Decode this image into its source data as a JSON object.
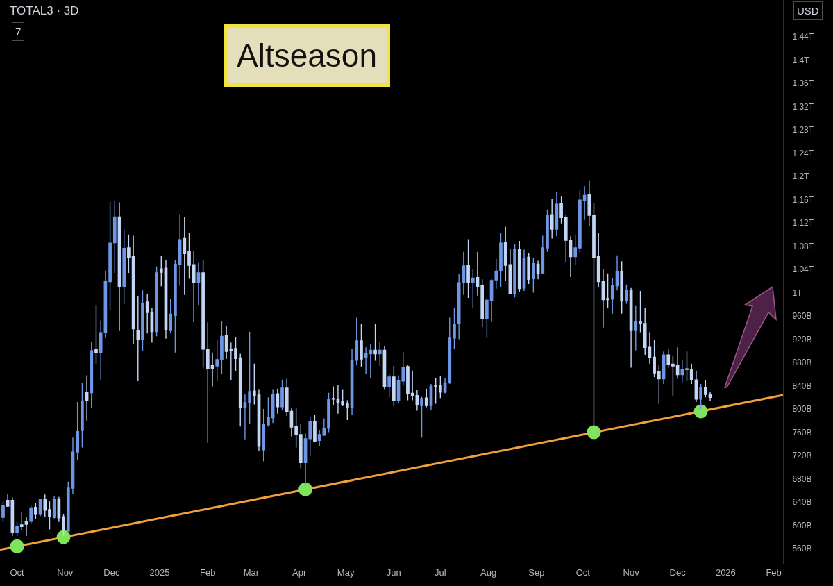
{
  "chart_data": {
    "type": "candlestick",
    "title": "Altseason",
    "subtitle": "TOTAL3 · 3D",
    "annotations": [
      "USD",
      "7"
    ],
    "xlim": [
      "2024-09-20",
      "2026-02-07"
    ],
    "xticks": [
      {
        "value": "2024-10-01",
        "label": "Oct"
      },
      {
        "value": "2024-11-01",
        "label": "Nov"
      },
      {
        "value": "2024-12-01",
        "label": "Dec"
      },
      {
        "value": "2025-01-01",
        "label": "2025"
      },
      {
        "value": "2025-02-01",
        "label": "Feb"
      },
      {
        "value": "2025-03-01",
        "label": "Mar"
      },
      {
        "value": "2025-04-01",
        "label": "Apr"
      },
      {
        "value": "2025-05-01",
        "label": "May"
      },
      {
        "value": "2025-06-01",
        "label": "Jun"
      },
      {
        "value": "2025-07-01",
        "label": "Jul"
      },
      {
        "value": "2025-08-01",
        "label": "Aug"
      },
      {
        "value": "2025-09-01",
        "label": "Sep"
      },
      {
        "value": "2025-10-01",
        "label": "Oct"
      },
      {
        "value": "2025-11-01",
        "label": "Nov"
      },
      {
        "value": "2025-12-01",
        "label": "Dec"
      },
      {
        "value": "2026-01-01",
        "label": "2026"
      },
      {
        "value": "2026-02-01",
        "label": "Feb"
      }
    ],
    "ylim": [
      534000000000.0,
      1503000000000.0
    ],
    "yticks": [
      {
        "value": 560000000000.0,
        "label": "560B"
      },
      {
        "value": 600000000000.0,
        "label": "600B"
      },
      {
        "value": 640000000000.0,
        "label": "640B"
      },
      {
        "value": 680000000000.0,
        "label": "680B"
      },
      {
        "value": 720000000000.0,
        "label": "720B"
      },
      {
        "value": 760000000000.0,
        "label": "760B"
      },
      {
        "value": 800000000000.0,
        "label": "800B"
      },
      {
        "value": 840000000000.0,
        "label": "840B"
      },
      {
        "value": 880000000000.0,
        "label": "880B"
      },
      {
        "value": 920000000000.0,
        "label": "920B"
      },
      {
        "value": 960000000000.0,
        "label": "960B"
      },
      {
        "value": 1000000000000.0,
        "label": "1T"
      },
      {
        "value": 1040000000000.0,
        "label": "1.04T"
      },
      {
        "value": 1080000000000.0,
        "label": "1.08T"
      },
      {
        "value": 1120000000000.0,
        "label": "1.12T"
      },
      {
        "value": 1160000000000.0,
        "label": "1.16T"
      },
      {
        "value": 1200000000000.0,
        "label": "1.2T"
      },
      {
        "value": 1240000000000.0,
        "label": "1.24T"
      },
      {
        "value": 1280000000000.0,
        "label": "1.28T"
      },
      {
        "value": 1320000000000.0,
        "label": "1.32T"
      },
      {
        "value": 1360000000000.0,
        "label": "1.36T"
      },
      {
        "value": 1400000000000.0,
        "label": "1.4T"
      },
      {
        "value": 1440000000000.0,
        "label": "1.44T"
      }
    ],
    "series": [
      {
        "type": "candlestick",
        "x": [
          "2024-09-22",
          "2024-09-25",
          "2024-09-28",
          "2024-10-01",
          "2024-10-04",
          "2024-10-07",
          "2024-10-10",
          "2024-10-13",
          "2024-10-16",
          "2024-10-19",
          "2024-10-22",
          "2024-10-25",
          "2024-10-28",
          "2024-10-31",
          "2024-11-03",
          "2024-11-06",
          "2024-11-09",
          "2024-11-12",
          "2024-11-15",
          "2024-11-18",
          "2024-11-21",
          "2024-11-24",
          "2024-11-27",
          "2024-11-30",
          "2024-12-03",
          "2024-12-06",
          "2024-12-09",
          "2024-12-12",
          "2024-12-15",
          "2024-12-18",
          "2024-12-21",
          "2024-12-24",
          "2024-12-27",
          "2024-12-30",
          "2025-01-02",
          "2025-01-05",
          "2025-01-08",
          "2025-01-11",
          "2025-01-14",
          "2025-01-17",
          "2025-01-20",
          "2025-01-23",
          "2025-01-26",
          "2025-01-29",
          "2025-02-01",
          "2025-02-04",
          "2025-02-07",
          "2025-02-10",
          "2025-02-13",
          "2025-02-16",
          "2025-02-19",
          "2025-02-22",
          "2025-02-25",
          "2025-02-28",
          "2025-03-03",
          "2025-03-06",
          "2025-03-09",
          "2025-03-12",
          "2025-03-15",
          "2025-03-18",
          "2025-03-21",
          "2025-03-24",
          "2025-03-27",
          "2025-03-30",
          "2025-04-02",
          "2025-04-05",
          "2025-04-08",
          "2025-04-11",
          "2025-04-14",
          "2025-04-17",
          "2025-04-20",
          "2025-04-23",
          "2025-04-26",
          "2025-04-29",
          "2025-05-02",
          "2025-05-05",
          "2025-05-08",
          "2025-05-11",
          "2025-05-14",
          "2025-05-17",
          "2025-05-20",
          "2025-05-23",
          "2025-05-26",
          "2025-05-29",
          "2025-06-01",
          "2025-06-04",
          "2025-06-07",
          "2025-06-10",
          "2025-06-13",
          "2025-06-16",
          "2025-06-19",
          "2025-06-22",
          "2025-06-25",
          "2025-06-28",
          "2025-07-01",
          "2025-07-04",
          "2025-07-07",
          "2025-07-10",
          "2025-07-13",
          "2025-07-16",
          "2025-07-19",
          "2025-07-22",
          "2025-07-25",
          "2025-07-28",
          "2025-07-31",
          "2025-08-03",
          "2025-08-06",
          "2025-08-09",
          "2025-08-12",
          "2025-08-15",
          "2025-08-18",
          "2025-08-21",
          "2025-08-24",
          "2025-08-27",
          "2025-08-30",
          "2025-09-02",
          "2025-09-05",
          "2025-09-08",
          "2025-09-11",
          "2025-09-14",
          "2025-09-17",
          "2025-09-20",
          "2025-09-23",
          "2025-09-26",
          "2025-09-29",
          "2025-10-02",
          "2025-10-05",
          "2025-10-08",
          "2025-10-11",
          "2025-10-14",
          "2025-10-17",
          "2025-10-20",
          "2025-10-23",
          "2025-10-26",
          "2025-10-29",
          "2025-11-01",
          "2025-11-04",
          "2025-11-07",
          "2025-11-10",
          "2025-11-13",
          "2025-11-16",
          "2025-11-19",
          "2025-11-22",
          "2025-11-25",
          "2025-11-28",
          "2025-12-01",
          "2025-12-04",
          "2025-12-07",
          "2025-12-10",
          "2025-12-13",
          "2025-12-16",
          "2025-12-19",
          "2025-12-22"
        ],
        "ohlc": [
          [
            614000000000.0,
            642000000000.0,
            606000000000.0,
            634000000000.0
          ],
          [
            643000000000.0,
            654000000000.0,
            632000000000.0,
            633000000000.0
          ],
          [
            643000000000.0,
            648000000000.0,
            582000000000.0,
            588000000000.0
          ],
          [
            588000000000.0,
            606000000000.0,
            582000000000.0,
            598000000000.0
          ],
          [
            601000000000.0,
            622000000000.0,
            592000000000.0,
            598000000000.0
          ],
          [
            607000000000.0,
            614000000000.0,
            582000000000.0,
            602000000000.0
          ],
          [
            607000000000.0,
            634000000000.0,
            602000000000.0,
            630000000000.0
          ],
          [
            631000000000.0,
            639000000000.0,
            611000000000.0,
            619000000000.0
          ],
          [
            619000000000.0,
            646000000000.0,
            616000000000.0,
            644000000000.0
          ],
          [
            644000000000.0,
            653000000000.0,
            614000000000.0,
            626000000000.0
          ],
          [
            627000000000.0,
            641000000000.0,
            593000000000.0,
            615000000000.0
          ],
          [
            614000000000.0,
            651000000000.0,
            612000000000.0,
            644000000000.0
          ],
          [
            644000000000.0,
            649000000000.0,
            606000000000.0,
            613000000000.0
          ],
          [
            615000000000.0,
            620000000000.0,
            582000000000.0,
            592000000000.0
          ],
          [
            590000000000.0,
            675000000000.0,
            590000000000.0,
            664000000000.0
          ],
          [
            664000000000.0,
            751000000000.0,
            654000000000.0,
            726000000000.0
          ],
          [
            726000000000.0,
            812000000000.0,
            712000000000.0,
            761000000000.0
          ],
          [
            763000000000.0,
            845000000000.0,
            734000000000.0,
            814000000000.0
          ],
          [
            828000000000.0,
            858000000000.0,
            780000000000.0,
            814000000000.0
          ],
          [
            828000000000.0,
            915000000000.0,
            802000000000.0,
            900000000000.0
          ],
          [
            903000000000.0,
            978000000000.0,
            878000000000.0,
            897000000000.0
          ],
          [
            897000000000.0,
            952000000000.0,
            850000000000.0,
            931000000000.0
          ],
          [
            931000000000.0,
            1038000000000.0,
            922000000000.0,
            1019000000000.0
          ],
          [
            1019000000000.0,
            1156000000000.0,
            970000000000.0,
            1085000000000.0
          ],
          [
            1086000000000.0,
            1158000000000.0,
            1034000000000.0,
            1130000000000.0
          ],
          [
            1130000000000.0,
            1155000000000.0,
            934000000000.0,
            1011000000000.0
          ],
          [
            1011000000000.0,
            1108000000000.0,
            980000000000.0,
            1076000000000.0
          ],
          [
            1077000000000.0,
            1100000000000.0,
            1034000000000.0,
            1060000000000.0
          ],
          [
            1062000000000.0,
            1098000000000.0,
            912000000000.0,
            938000000000.0
          ],
          [
            935000000000.0,
            994000000000.0,
            848000000000.0,
            920000000000.0
          ],
          [
            920000000000.0,
            1004000000000.0,
            900000000000.0,
            981000000000.0
          ],
          [
            984000000000.0,
            997000000000.0,
            930000000000.0,
            966000000000.0
          ],
          [
            966000000000.0,
            974000000000.0,
            914000000000.0,
            933000000000.0
          ],
          [
            933000000000.0,
            1045000000000.0,
            925000000000.0,
            1034000000000.0
          ],
          [
            1041000000000.0,
            1063000000000.0,
            1011000000000.0,
            1035000000000.0
          ],
          [
            1042000000000.0,
            1056000000000.0,
            921000000000.0,
            936000000000.0
          ],
          [
            935000000000.0,
            990000000000.0,
            930000000000.0,
            963000000000.0
          ],
          [
            961000000000.0,
            1056000000000.0,
            897000000000.0,
            1049000000000.0
          ],
          [
            1049000000000.0,
            1135000000000.0,
            1012000000000.0,
            1091000000000.0
          ],
          [
            1093000000000.0,
            1130000000000.0,
            996000000000.0,
            1067000000000.0
          ],
          [
            1071000000000.0,
            1103000000000.0,
            1024000000000.0,
            1047000000000.0
          ],
          [
            1048000000000.0,
            1072000000000.0,
            949000000000.0,
            1017000000000.0
          ],
          [
            1017000000000.0,
            1051000000000.0,
            979000000000.0,
            1034000000000.0
          ],
          [
            1034000000000.0,
            1056000000000.0,
            871000000000.0,
            903000000000.0
          ],
          [
            903000000000.0,
            949000000000.0,
            742000000000.0,
            869000000000.0
          ],
          [
            875000000000.0,
            897000000000.0,
            839000000000.0,
            870000000000.0
          ],
          [
            874000000000.0,
            919000000000.0,
            848000000000.0,
            885000000000.0
          ],
          [
            885000000000.0,
            951000000000.0,
            860000000000.0,
            925000000000.0
          ],
          [
            926000000000.0,
            943000000000.0,
            886000000000.0,
            899000000000.0
          ],
          [
            903000000000.0,
            914000000000.0,
            850000000000.0,
            900000000000.0
          ],
          [
            904000000000.0,
            923000000000.0,
            865000000000.0,
            887000000000.0
          ],
          [
            888000000000.0,
            895000000000.0,
            770000000000.0,
            803000000000.0
          ],
          [
            802000000000.0,
            825000000000.0,
            748000000000.0,
            811000000000.0
          ],
          [
            811000000000.0,
            933000000000.0,
            775000000000.0,
            830000000000.0
          ],
          [
            831000000000.0,
            878000000000.0,
            808000000000.0,
            823000000000.0
          ],
          [
            824000000000.0,
            834000000000.0,
            728000000000.0,
            736000000000.0
          ],
          [
            730000000000.0,
            800000000000.0,
            710000000000.0,
            774000000000.0
          ],
          [
            773000000000.0,
            820000000000.0,
            770000000000.0,
            785000000000.0
          ],
          [
            785000000000.0,
            834000000000.0,
            776000000000.0,
            825000000000.0
          ],
          [
            826000000000.0,
            835000000000.0,
            792000000000.0,
            804000000000.0
          ],
          [
            804000000000.0,
            849000000000.0,
            799000000000.0,
            836000000000.0
          ],
          [
            836000000000.0,
            852000000000.0,
            788000000000.0,
            796000000000.0
          ],
          [
            796000000000.0,
            801000000000.0,
            753000000000.0,
            769000000000.0
          ],
          [
            770000000000.0,
            801000000000.0,
            734000000000.0,
            756000000000.0
          ],
          [
            756000000000.0,
            775000000000.0,
            698000000000.0,
            708000000000.0
          ],
          [
            708000000000.0,
            758000000000.0,
            668000000000.0,
            749000000000.0
          ],
          [
            749000000000.0,
            787000000000.0,
            719000000000.0,
            779000000000.0
          ],
          [
            779000000000.0,
            790000000000.0,
            744000000000.0,
            745000000000.0
          ],
          [
            746000000000.0,
            764000000000.0,
            736000000000.0,
            756000000000.0
          ],
          [
            755000000000.0,
            784000000000.0,
            754000000000.0,
            766000000000.0
          ],
          [
            767000000000.0,
            828000000000.0,
            760000000000.0,
            816000000000.0
          ],
          [
            818000000000.0,
            839000000000.0,
            806000000000.0,
            817000000000.0
          ],
          [
            817000000000.0,
            842000000000.0,
            792000000000.0,
            811000000000.0
          ],
          [
            813000000000.0,
            834000000000.0,
            805000000000.0,
            808000000000.0
          ],
          [
            809000000000.0,
            815000000000.0,
            781000000000.0,
            802000000000.0
          ],
          [
            802000000000.0,
            904000000000.0,
            790000000000.0,
            884000000000.0
          ],
          [
            884000000000.0,
            957000000000.0,
            875000000000.0,
            917000000000.0
          ],
          [
            917000000000.0,
            947000000000.0,
            873000000000.0,
            886000000000.0
          ],
          [
            888000000000.0,
            906000000000.0,
            861000000000.0,
            895000000000.0
          ],
          [
            895000000000.0,
            912000000000.0,
            853000000000.0,
            901000000000.0
          ],
          [
            901000000000.0,
            946000000000.0,
            883000000000.0,
            895000000000.0
          ],
          [
            895000000000.0,
            915000000000.0,
            874000000000.0,
            901000000000.0
          ],
          [
            901000000000.0,
            908000000000.0,
            834000000000.0,
            839000000000.0
          ],
          [
            839000000000.0,
            860000000000.0,
            820000000000.0,
            855000000000.0
          ],
          [
            855000000000.0,
            874000000000.0,
            805000000000.0,
            815000000000.0
          ],
          [
            814000000000.0,
            858000000000.0,
            811000000000.0,
            849000000000.0
          ],
          [
            848000000000.0,
            898000000000.0,
            840000000000.0,
            872000000000.0
          ],
          [
            873000000000.0,
            875000000000.0,
            815000000000.0,
            827000000000.0
          ],
          [
            827000000000.0,
            866000000000.0,
            815000000000.0,
            823000000000.0
          ],
          [
            823000000000.0,
            833000000000.0,
            797000000000.0,
            807000000000.0
          ],
          [
            806000000000.0,
            821000000000.0,
            751000000000.0,
            818000000000.0
          ],
          [
            819000000000.0,
            835000000000.0,
            803000000000.0,
            806000000000.0
          ],
          [
            806000000000.0,
            843000000000.0,
            799000000000.0,
            839000000000.0
          ],
          [
            840000000000.0,
            853000000000.0,
            809000000000.0,
            839000000000.0
          ],
          [
            840000000000.0,
            857000000000.0,
            819000000000.0,
            829000000000.0
          ],
          [
            829000000000.0,
            853000000000.0,
            827000000000.0,
            845000000000.0
          ],
          [
            846000000000.0,
            957000000000.0,
            843000000000.0,
            922000000000.0
          ],
          [
            922000000000.0,
            974000000000.0,
            903000000000.0,
            946000000000.0
          ],
          [
            947000000000.0,
            1032000000000.0,
            920000000000.0,
            1017000000000.0
          ],
          [
            1018000000000.0,
            1070000000000.0,
            996000000000.0,
            1046000000000.0
          ],
          [
            1047000000000.0,
            1092000000000.0,
            991000000000.0,
            1017000000000.0
          ],
          [
            1018000000000.0,
            1041000000000.0,
            973000000000.0,
            1025000000000.0
          ],
          [
            1026000000000.0,
            1070000000000.0,
            995000000000.0,
            1011000000000.0
          ],
          [
            1012000000000.0,
            1023000000000.0,
            941000000000.0,
            956000000000.0
          ],
          [
            956000000000.0,
            991000000000.0,
            922000000000.0,
            987000000000.0
          ],
          [
            987000000000.0,
            1023000000000.0,
            950000000000.0,
            1021000000000.0
          ],
          [
            1022000000000.0,
            1058000000000.0,
            1007000000000.0,
            1037000000000.0
          ],
          [
            1038000000000.0,
            1102000000000.0,
            1010000000000.0,
            1085000000000.0
          ],
          [
            1086000000000.0,
            1113000000000.0,
            1020000000000.0,
            1047000000000.0
          ],
          [
            1048000000000.0,
            1075000000000.0,
            997000000000.0,
            998000000000.0
          ],
          [
            998000000000.0,
            1083000000000.0,
            992000000000.0,
            1075000000000.0
          ],
          [
            1075000000000.0,
            1089000000000.0,
            1001000000000.0,
            1007000000000.0
          ],
          [
            1008000000000.0,
            1074000000000.0,
            1003000000000.0,
            1059000000000.0
          ],
          [
            1061000000000.0,
            1068000000000.0,
            1015000000000.0,
            1023000000000.0
          ],
          [
            1024000000000.0,
            1060000000000.0,
            1000000000000.0,
            1050000000000.0
          ],
          [
            1049000000000.0,
            1055000000000.0,
            1023000000000.0,
            1033000000000.0
          ],
          [
            1033000000000.0,
            1098000000000.0,
            1032000000000.0,
            1077000000000.0
          ],
          [
            1077000000000.0,
            1143000000000.0,
            1070000000000.0,
            1133000000000.0
          ],
          [
            1134000000000.0,
            1161000000000.0,
            1093000000000.0,
            1109000000000.0
          ],
          [
            1109000000000.0,
            1173000000000.0,
            1097000000000.0,
            1152000000000.0
          ],
          [
            1153000000000.0,
            1165000000000.0,
            1119000000000.0,
            1129000000000.0
          ],
          [
            1129000000000.0,
            1133000000000.0,
            1053000000000.0,
            1090000000000.0
          ],
          [
            1090000000000.0,
            1097000000000.0,
            1027000000000.0,
            1062000000000.0
          ],
          [
            1062000000000.0,
            1100000000000.0,
            1047000000000.0,
            1077000000000.0
          ],
          [
            1077000000000.0,
            1176000000000.0,
            1069000000000.0,
            1159000000000.0
          ],
          [
            1159000000000.0,
            1183000000000.0,
            1125000000000.0,
            1167000000000.0
          ],
          [
            1168000000000.0,
            1193000000000.0,
            1114000000000.0,
            1133000000000.0
          ],
          [
            1133000000000.0,
            1154000000000.0,
            760000000000.0,
            1060000000000.0
          ],
          [
            1062000000000.0,
            1103000000000.0,
            1010000000000.0,
            1019000000000.0
          ],
          [
            1020000000000.0,
            1040000000000.0,
            940000000000.0,
            988000000000.0
          ],
          [
            990000000000.0,
            1033000000000.0,
            974000000000.0,
            988000000000.0
          ],
          [
            989000000000.0,
            1025000000000.0,
            964000000000.0,
            1012000000000.0
          ],
          [
            1012000000000.0,
            1064000000000.0,
            1004000000000.0,
            1036000000000.0
          ],
          [
            1036000000000.0,
            1054000000000.0,
            964000000000.0,
            986000000000.0
          ],
          [
            986000000000.0,
            1014000000000.0,
            981000000000.0,
            1004000000000.0
          ],
          [
            1004000000000.0,
            1008000000000.0,
            871000000000.0,
            935000000000.0
          ],
          [
            935000000000.0,
            977000000000.0,
            901000000000.0,
            950000000000.0
          ],
          [
            950000000000.0,
            1003000000000.0,
            932000000000.0,
            947000000000.0
          ],
          [
            947000000000.0,
            974000000000.0,
            893000000000.0,
            906000000000.0
          ],
          [
            906000000000.0,
            932000000000.0,
            878000000000.0,
            889000000000.0
          ],
          [
            889000000000.0,
            919000000000.0,
            855000000000.0,
            862000000000.0
          ],
          [
            864000000000.0,
            875000000000.0,
            809000000000.0,
            852000000000.0
          ],
          [
            852000000000.0,
            899000000000.0,
            843000000000.0,
            893000000000.0
          ],
          [
            893000000000.0,
            903000000000.0,
            871000000000.0,
            876000000000.0
          ],
          [
            877000000000.0,
            891000000000.0,
            823000000000.0,
            874000000000.0
          ],
          [
            875000000000.0,
            906000000000.0,
            852000000000.0,
            859000000000.0
          ],
          [
            859000000000.0,
            884000000000.0,
            846000000000.0,
            868000000000.0
          ],
          [
            869000000000.0,
            899000000000.0,
            848000000000.0,
            868000000000.0
          ],
          [
            868000000000.0,
            878000000000.0,
            843000000000.0,
            850000000000.0
          ],
          [
            850000000000.0,
            866000000000.0,
            812000000000.0,
            817000000000.0
          ],
          [
            817000000000.0,
            843000000000.0,
            800000000000.0,
            837000000000.0
          ],
          [
            837000000000.0,
            849000000000.0,
            820000000000.0,
            825000000000.0
          ],
          [
            825000000000.0,
            829000000000.0,
            814000000000.0,
            820000000000.0
          ]
        ],
        "colors": [
          "#6e97e6",
          "#c4d6f5",
          "#c4d6f5",
          "#6e97e6",
          "#c4d6f5",
          "#c4d6f5",
          "#6e97e6",
          "#c4d6f5",
          "#6e97e6",
          "#c4d6f5",
          "#c4d6f5",
          "#6e97e6",
          "#c4d6f5",
          "#c4d6f5",
          "#6e97e6",
          "#6e97e6",
          "#6e97e6",
          "#6e97e6",
          "#c4d6f5",
          "#6e97e6",
          "#c4d6f5",
          "#6e97e6",
          "#6e97e6",
          "#6e97e6",
          "#6e97e6",
          "#c4d6f5",
          "#6e97e6",
          "#c4d6f5",
          "#c4d6f5",
          "#c4d6f5",
          "#6e97e6",
          "#c4d6f5",
          "#c4d6f5",
          "#6e97e6",
          "#c4d6f5",
          "#c4d6f5",
          "#6e97e6",
          "#6e97e6",
          "#6e97e6",
          "#c4d6f5",
          "#c4d6f5",
          "#c4d6f5",
          "#6e97e6",
          "#c4d6f5",
          "#c4d6f5",
          "#c4d6f5",
          "#6e97e6",
          "#6e97e6",
          "#c4d6f5",
          "#c4d6f5",
          "#c4d6f5",
          "#c4d6f5",
          "#6e97e6",
          "#6e97e6",
          "#c4d6f5",
          "#c4d6f5",
          "#6e97e6",
          "#6e97e6",
          "#6e97e6",
          "#c4d6f5",
          "#6e97e6",
          "#c4d6f5",
          "#c4d6f5",
          "#c4d6f5",
          "#c4d6f5",
          "#6e97e6",
          "#6e97e6",
          "#c4d6f5",
          "#6e97e6",
          "#6e97e6",
          "#6e97e6",
          "#c4d6f5",
          "#c4d6f5",
          "#c4d6f5",
          "#c4d6f5",
          "#6e97e6",
          "#6e97e6",
          "#c4d6f5",
          "#6e97e6",
          "#6e97e6",
          "#c4d6f5",
          "#6e97e6",
          "#c4d6f5",
          "#6e97e6",
          "#c4d6f5",
          "#6e97e6",
          "#6e97e6",
          "#c4d6f5",
          "#c4d6f5",
          "#c4d6f5",
          "#6e97e6",
          "#c4d6f5",
          "#6e97e6",
          "#c4d6f5",
          "#c4d6f5",
          "#6e97e6",
          "#6e97e6",
          "#6e97e6",
          "#6e97e6",
          "#6e97e6",
          "#c4d6f5",
          "#6e97e6",
          "#c4d6f5",
          "#c4d6f5",
          "#6e97e6",
          "#6e97e6",
          "#6e97e6",
          "#6e97e6",
          "#c4d6f5",
          "#c4d6f5",
          "#6e97e6",
          "#c4d6f5",
          "#6e97e6",
          "#c4d6f5",
          "#6e97e6",
          "#c4d6f5",
          "#6e97e6",
          "#6e97e6",
          "#c4d6f5",
          "#6e97e6",
          "#c4d6f5",
          "#c4d6f5",
          "#c4d6f5",
          "#6e97e6",
          "#6e97e6",
          "#6e97e6",
          "#c4d6f5",
          "#c4d6f5",
          "#c4d6f5",
          "#c4d6f5",
          "#c4d6f5",
          "#6e97e6",
          "#6e97e6",
          "#c4d6f5",
          "#6e97e6",
          "#c4d6f5",
          "#6e97e6",
          "#c4d6f5",
          "#c4d6f5",
          "#c4d6f5",
          "#c4d6f5",
          "#c4d6f5",
          "#6e97e6",
          "#c4d6f5",
          "#c4d6f5",
          "#c4d6f5",
          "#6e97e6",
          "#c4d6f5",
          "#c4d6f5",
          "#c4d6f5",
          "#6e97e6",
          "#c4d6f5",
          "#c4d6f5"
        ]
      },
      {
        "type": "line",
        "color": "#f2a03d",
        "x": [
          "2024-09-20",
          "2026-02-07"
        ],
        "values": [
          558000000000.0,
          824000000000.0
        ]
      },
      {
        "type": "scatter",
        "color": "#7fe35c",
        "marker": "circle",
        "x": [
          "2024-10-01",
          "2024-10-31",
          "2025-04-05",
          "2025-10-08",
          "2025-12-16"
        ],
        "values": [
          564000000000.0,
          580000000000.0,
          662000000000.0,
          760000000000.0,
          796000000000.0
        ]
      }
    ]
  }
}
